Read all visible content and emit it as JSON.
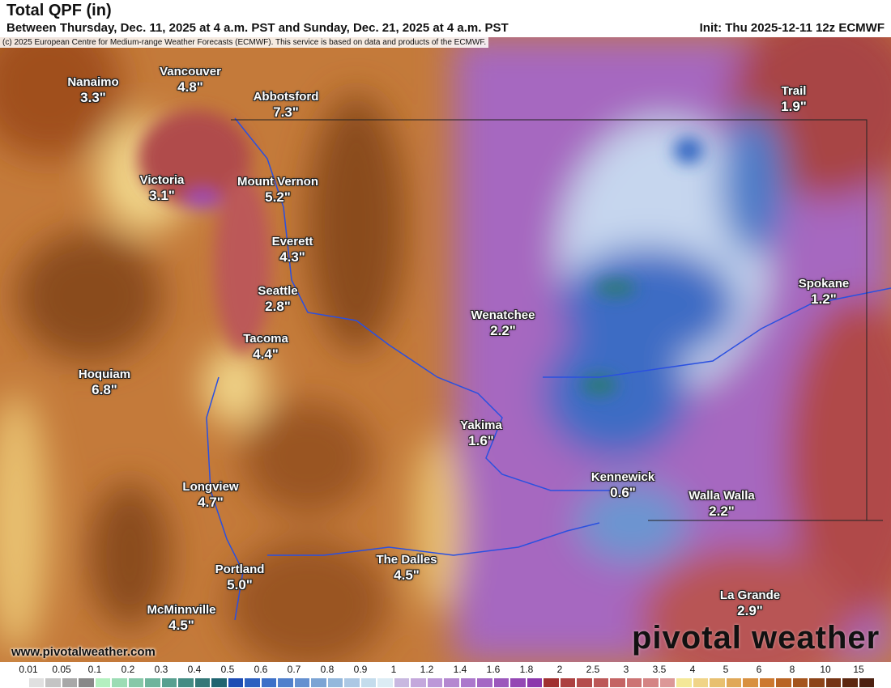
{
  "header": {
    "title": "Total QPF (in)",
    "subtitle": "Between Thursday, Dec. 11, 2025 at 4 a.m. PST and Sunday, Dec. 21, 2025 at 4 a.m. PST",
    "init": "Init: Thu 2025-12-11 12z ECMWF"
  },
  "copyright": "(c) 2025 European Centre for Medium-range Weather Forecasts (ECMWF). This service is based on data and products of the ECMWF.",
  "cities": [
    {
      "name": "Nanaimo",
      "value": "3.3\""
    },
    {
      "name": "Vancouver",
      "value": "4.8\""
    },
    {
      "name": "Abbotsford",
      "value": "7.3\""
    },
    {
      "name": "Victoria",
      "value": "3.1\""
    },
    {
      "name": "Mount Vernon",
      "value": "5.2\""
    },
    {
      "name": "Everett",
      "value": "4.3\""
    },
    {
      "name": "Seattle",
      "value": "2.8\""
    },
    {
      "name": "Tacoma",
      "value": "4.4\""
    },
    {
      "name": "Hoquiam",
      "value": "6.8\""
    },
    {
      "name": "Wenatchee",
      "value": "2.2\""
    },
    {
      "name": "Yakima",
      "value": "1.6\""
    },
    {
      "name": "Trail",
      "value": "1.9\""
    },
    {
      "name": "Spokane",
      "value": "1.2\""
    },
    {
      "name": "Kennewick",
      "value": "0.6\""
    },
    {
      "name": "Walla Walla",
      "value": "2.2\""
    },
    {
      "name": "Longview",
      "value": "4.7\""
    },
    {
      "name": "Portland",
      "value": "5.0\""
    },
    {
      "name": "The Dalles",
      "value": "4.5\""
    },
    {
      "name": "McMinnville",
      "value": "4.5\""
    },
    {
      "name": "La Grande",
      "value": "2.9\""
    }
  ],
  "footer": {
    "site": "www.pivotalweather.com",
    "logo": "pivotal weather"
  },
  "legend": {
    "labels": [
      "0.01",
      "0.05",
      "0.1",
      "0.2",
      "0.3",
      "0.4",
      "0.5",
      "0.6",
      "0.7",
      "0.8",
      "0.9",
      "1",
      "1.2",
      "1.4",
      "1.6",
      "1.8",
      "2",
      "2.5",
      "3",
      "3.5",
      "4",
      "5",
      "6",
      "8",
      "10",
      "15"
    ],
    "colors": [
      "#ffffff",
      "#e0e0e0",
      "#c4c4c4",
      "#a8a8a8",
      "#888888",
      "#b4f0c0",
      "#9cdcb4",
      "#86c8a8",
      "#6eb49c",
      "#58a090",
      "#448c84",
      "#347878",
      "#206470",
      "#1c4cb4",
      "#2c60c0",
      "#3c70c8",
      "#5080cc",
      "#6490d0",
      "#7ca4d4",
      "#94b8dc",
      "#acc8e4",
      "#c4dcec",
      "#dcecf4",
      "#c8b8e0",
      "#c4a8dc",
      "#bc98d8",
      "#b488d0",
      "#ac78cc",
      "#a468c4",
      "#9c58bc",
      "#9448b4",
      "#8c38ac",
      "#a03030",
      "#ac4040",
      "#b44c4c",
      "#bc5858",
      "#c46464",
      "#cc7474",
      "#d48484",
      "#dc9898",
      "#f4e898",
      "#f0d488",
      "#e8c070",
      "#e0a858",
      "#d89040",
      "#cc7830",
      "#b86424",
      "#a4541c",
      "#8c4418",
      "#743414",
      "#5c2810",
      "#4c2010"
    ]
  }
}
